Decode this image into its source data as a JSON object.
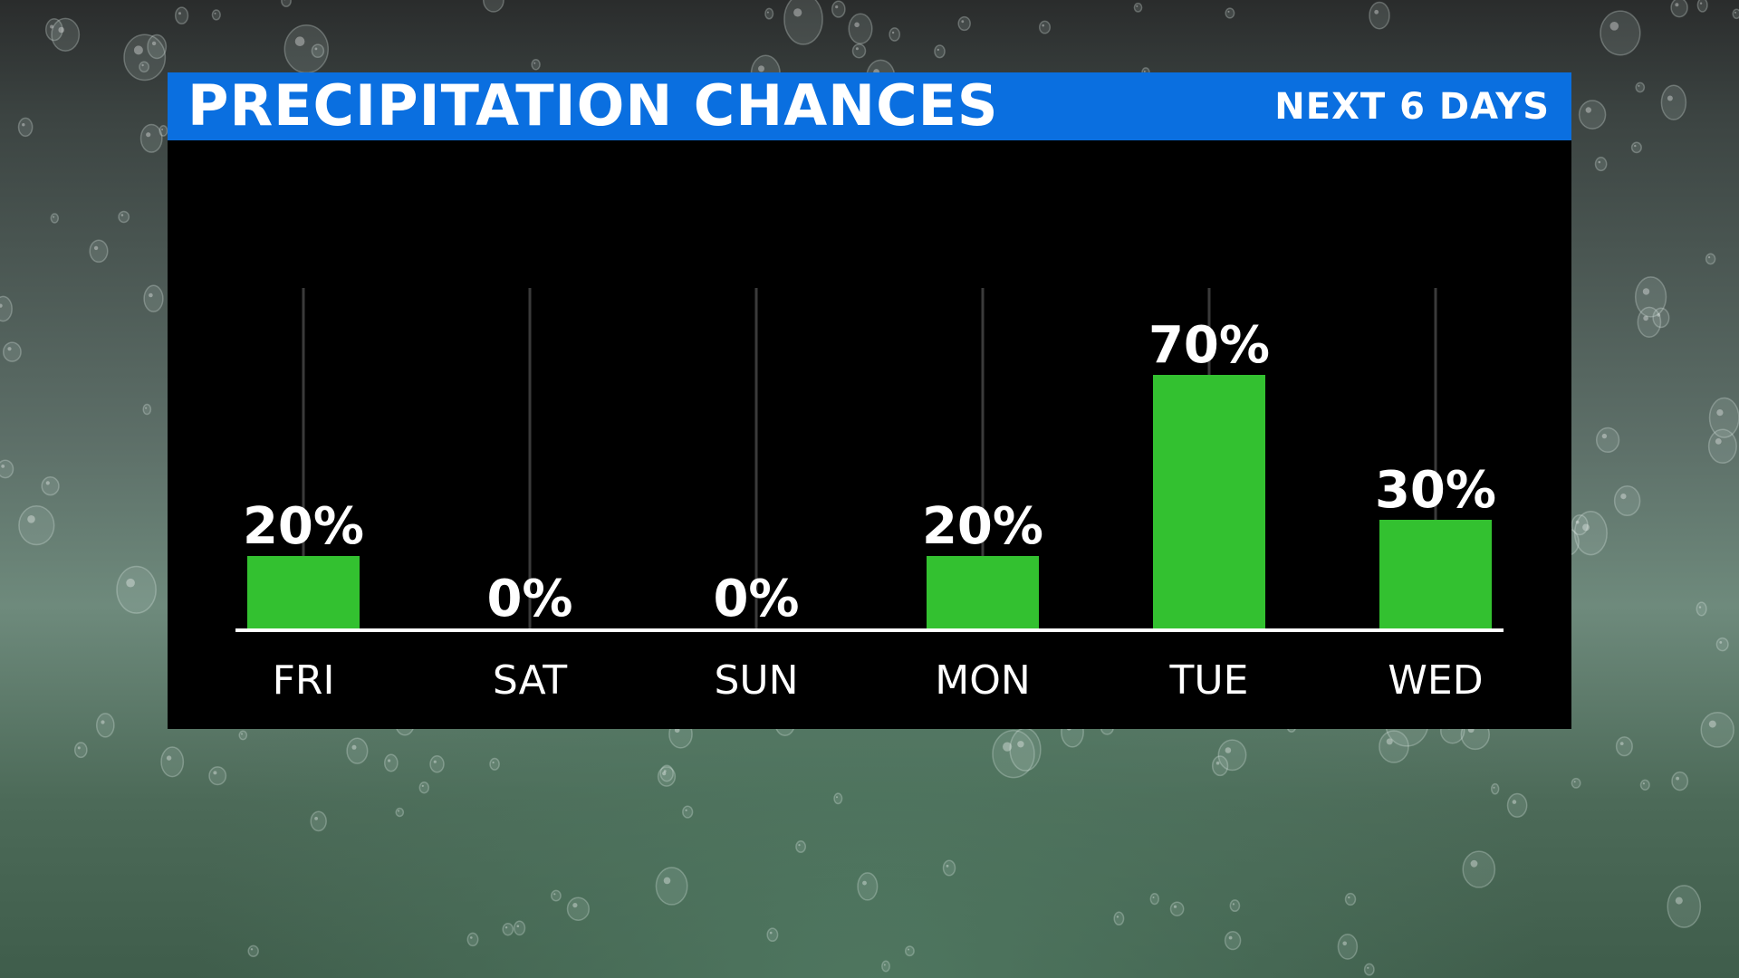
{
  "header": {
    "title": "PRECIPITATION CHANCES",
    "subtitle": "NEXT 6 DAYS"
  },
  "colors": {
    "header_bg": "#0a6fe0",
    "panel_bg": "#000000",
    "bar": "#33c130",
    "text": "#ffffff"
  },
  "chart_data": {
    "type": "bar",
    "title": "PRECIPITATION CHANCES",
    "subtitle": "NEXT 6 DAYS",
    "categories": [
      "FRI",
      "SAT",
      "SUN",
      "MON",
      "TUE",
      "WED"
    ],
    "values": [
      20,
      0,
      0,
      20,
      70,
      30
    ],
    "value_labels": [
      "20%",
      "0%",
      "0%",
      "20%",
      "70%",
      "30%"
    ],
    "unit": "%",
    "ylim": [
      0,
      100
    ],
    "grid": true
  }
}
